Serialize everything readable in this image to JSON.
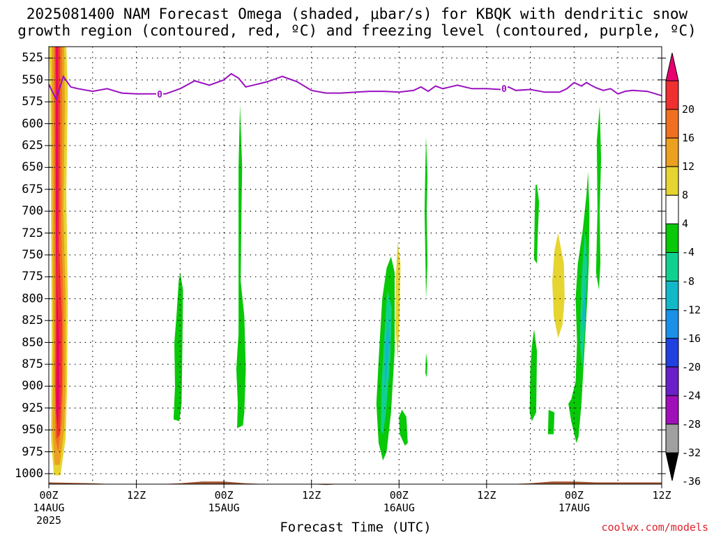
{
  "title": {
    "line1": "2025081400 NAM Forecast Omega (shaded, μbar/s) for KBQK with dendritic snow",
    "line2": "growth region (contoured, red, ºC) and freezing level (contoured, purple, ºC)"
  },
  "credit": "coolwx.com/models",
  "chart_data": {
    "type": "heatmap",
    "xlabel": "Forecast Time (UTC)",
    "ylabel": "",
    "x_ticks": [
      {
        "hour": 0,
        "label": "00Z",
        "date": "14AUG"
      },
      {
        "hour": 12,
        "label": "12Z",
        "date": ""
      },
      {
        "hour": 24,
        "label": "00Z",
        "date": "15AUG"
      },
      {
        "hour": 36,
        "label": "12Z",
        "date": ""
      },
      {
        "hour": 48,
        "label": "00Z",
        "date": "16AUG"
      },
      {
        "hour": 60,
        "label": "12Z",
        "date": ""
      },
      {
        "hour": 72,
        "label": "00Z",
        "date": "17AUG"
      },
      {
        "hour": 84,
        "label": "12Z",
        "date": ""
      }
    ],
    "year_label": "2025",
    "xlim": [
      0,
      84
    ],
    "y_ticks": [
      525,
      550,
      575,
      600,
      625,
      650,
      675,
      700,
      725,
      750,
      775,
      800,
      825,
      850,
      875,
      900,
      925,
      950,
      975,
      1000
    ],
    "ylim": [
      1012,
      512
    ],
    "grid": true,
    "colorbar": {
      "labels": [
        "20",
        "16",
        "12",
        "8",
        "4",
        "-4",
        "-8",
        "-12",
        "-16",
        "-20",
        "-24",
        "-28",
        "-32",
        "-36"
      ],
      "colors": [
        "#e8006e",
        "#ee3030",
        "#f07020",
        "#eba020",
        "#e6d530",
        "#ffffff",
        "#08c808",
        "#10d090",
        "#12b8c8",
        "#1a90e8",
        "#2040e0",
        "#6a20c8",
        "#a010b8",
        "#a0a0a0",
        "#000000"
      ]
    },
    "freezing_level": {
      "color": "#9a10c0",
      "label": "0",
      "label_hours": [
        15.2,
        62.4
      ],
      "hours": [
        0,
        1,
        2,
        3,
        4,
        6,
        8,
        10,
        12,
        14,
        16,
        18,
        20,
        22,
        24,
        25,
        26,
        27,
        28,
        30,
        32,
        33,
        34,
        36,
        38,
        40,
        42,
        44,
        46,
        48,
        50,
        51,
        52,
        53,
        54,
        55,
        56,
        58,
        60,
        62,
        63,
        64,
        66,
        68,
        70,
        71,
        72,
        73,
        73.7,
        74.3,
        75,
        76,
        77,
        78,
        79,
        80,
        82,
        84
      ],
      "values": [
        555,
        572,
        546,
        558,
        560,
        563,
        560,
        565,
        566,
        566,
        566,
        560,
        551,
        556,
        550,
        543,
        548,
        558,
        556,
        552,
        546,
        549,
        552,
        562,
        565,
        565,
        564,
        563,
        563,
        564,
        562,
        558,
        563,
        557,
        560,
        558,
        556,
        560,
        560,
        561,
        558,
        562,
        561,
        564,
        564,
        560,
        553,
        557,
        553,
        556,
        559,
        562,
        560,
        566,
        563,
        562,
        563,
        568
      ]
    },
    "omega_regions": [
      {
        "level": "4",
        "color": "#e6d530",
        "pts": [
          [
            0,
            512
          ],
          [
            2.4,
            512
          ],
          [
            2.6,
            560
          ],
          [
            2.4,
            680
          ],
          [
            2.6,
            800
          ],
          [
            2.5,
            900
          ],
          [
            2.3,
            960
          ],
          [
            1.6,
            1002
          ],
          [
            0.7,
            1002
          ],
          [
            0.3,
            960
          ],
          [
            0.4,
            850
          ],
          [
            0.3,
            700
          ],
          [
            0.2,
            560
          ]
        ]
      },
      {
        "level": "8",
        "color": "#eba020",
        "pts": [
          [
            0.4,
            512
          ],
          [
            2.1,
            512
          ],
          [
            2.2,
            580
          ],
          [
            2.0,
            700
          ],
          [
            2.3,
            800
          ],
          [
            2.3,
            900
          ],
          [
            2.1,
            950
          ],
          [
            1.5,
            990
          ],
          [
            0.8,
            990
          ],
          [
            0.5,
            950
          ],
          [
            0.6,
            850
          ],
          [
            0.5,
            700
          ],
          [
            0.4,
            580
          ]
        ]
      },
      {
        "level": "12",
        "color": "#f07020",
        "pts": [
          [
            0.7,
            512
          ],
          [
            1.8,
            512
          ],
          [
            1.8,
            600
          ],
          [
            1.7,
            720
          ],
          [
            2.0,
            800
          ],
          [
            2.0,
            880
          ],
          [
            1.8,
            940
          ],
          [
            1.3,
            975
          ],
          [
            0.9,
            960
          ],
          [
            0.8,
            880
          ],
          [
            0.8,
            760
          ],
          [
            0.7,
            600
          ]
        ]
      },
      {
        "level": "16",
        "color": "#ee3030",
        "pts": [
          [
            0.9,
            512
          ],
          [
            1.5,
            512
          ],
          [
            1.5,
            620
          ],
          [
            1.4,
            740
          ],
          [
            1.8,
            820
          ],
          [
            1.8,
            900
          ],
          [
            1.5,
            955
          ],
          [
            1.1,
            960
          ],
          [
            0.9,
            900
          ],
          [
            1.0,
            800
          ],
          [
            0.9,
            620
          ]
        ]
      },
      {
        "level": "20",
        "color": "#e8006e",
        "pts": [
          [
            1.0,
            512
          ],
          [
            1.2,
            512
          ],
          [
            1.2,
            700
          ],
          [
            1.1,
            780
          ],
          [
            1.4,
            850
          ],
          [
            1.4,
            920
          ],
          [
            1.2,
            945
          ],
          [
            1.0,
            930
          ],
          [
            1.1,
            850
          ],
          [
            1.0,
            750
          ]
        ]
      },
      {
        "level": "-4",
        "color": "#08c808",
        "pts": [
          [
            18.0,
            770
          ],
          [
            18.4,
            790
          ],
          [
            18.3,
            860
          ],
          [
            18.2,
            920
          ],
          [
            17.9,
            940
          ],
          [
            17.1,
            938
          ],
          [
            17.3,
            900
          ],
          [
            17.2,
            850
          ],
          [
            17.5,
            820
          ],
          [
            17.8,
            780
          ]
        ]
      },
      {
        "level": "-4",
        "color": "#08c808",
        "pts": [
          [
            26.2,
            578
          ],
          [
            26.5,
            650
          ],
          [
            26.4,
            700
          ],
          [
            26.3,
            780
          ],
          [
            26.8,
            820
          ],
          [
            27.0,
            880
          ],
          [
            26.8,
            930
          ],
          [
            26.6,
            945
          ],
          [
            25.8,
            948
          ],
          [
            25.9,
            920
          ],
          [
            25.7,
            880
          ],
          [
            26.0,
            840
          ],
          [
            26.0,
            760
          ],
          [
            26.0,
            650
          ]
        ]
      },
      {
        "level": "-4",
        "color": "#08c808",
        "pts": [
          [
            46.9,
            752
          ],
          [
            47.4,
            770
          ],
          [
            47.4,
            860
          ],
          [
            46.9,
            930
          ],
          [
            46.3,
            975
          ],
          [
            45.8,
            985
          ],
          [
            45.2,
            965
          ],
          [
            44.9,
            920
          ],
          [
            45.2,
            870
          ],
          [
            45.7,
            800
          ],
          [
            46.3,
            765
          ]
        ]
      },
      {
        "level": "-4",
        "color": "#08c808",
        "pts": [
          [
            48.4,
            927
          ],
          [
            49.0,
            935
          ],
          [
            49.2,
            965
          ],
          [
            48.8,
            968
          ],
          [
            48.1,
            955
          ],
          [
            48.0,
            935
          ]
        ]
      },
      {
        "level": "-4",
        "color": "#08c808",
        "pts": [
          [
            51.7,
            615
          ],
          [
            51.9,
            660
          ],
          [
            51.8,
            700
          ],
          [
            51.9,
            760
          ],
          [
            51.7,
            800
          ],
          [
            51.6,
            750
          ],
          [
            51.5,
            700
          ],
          [
            51.6,
            650
          ]
        ]
      },
      {
        "level": "-4",
        "color": "#08c808",
        "pts": [
          [
            51.7,
            862
          ],
          [
            51.9,
            875
          ],
          [
            51.8,
            890
          ],
          [
            51.6,
            885
          ]
        ]
      },
      {
        "level": "-4",
        "color": "#08c808",
        "pts": [
          [
            66.9,
            670
          ],
          [
            67.2,
            690
          ],
          [
            67.0,
            730
          ],
          [
            66.9,
            760
          ],
          [
            66.5,
            755
          ],
          [
            66.6,
            700
          ],
          [
            66.7,
            670
          ]
        ]
      },
      {
        "level": "-4",
        "color": "#08c808",
        "pts": [
          [
            66.5,
            835
          ],
          [
            66.9,
            860
          ],
          [
            66.8,
            930
          ],
          [
            66.2,
            940
          ],
          [
            65.9,
            930
          ],
          [
            66.0,
            880
          ],
          [
            66.2,
            855
          ]
        ]
      },
      {
        "level": "-4",
        "color": "#08c808",
        "pts": [
          [
            68.5,
            927
          ],
          [
            69.3,
            930
          ],
          [
            69.2,
            955
          ],
          [
            68.4,
            955
          ]
        ]
      },
      {
        "level": "-4",
        "color": "#08c808",
        "pts": [
          [
            73.9,
            655
          ],
          [
            74.1,
            700
          ],
          [
            74.0,
            760
          ],
          [
            73.8,
            800
          ],
          [
            73.4,
            860
          ],
          [
            73.0,
            920
          ],
          [
            72.6,
            958
          ],
          [
            72.3,
            965
          ],
          [
            71.6,
            940
          ],
          [
            71.2,
            920
          ],
          [
            70.8,
            925
          ],
          [
            71.6,
            915
          ],
          [
            72.2,
            895
          ],
          [
            72.4,
            850
          ],
          [
            72.2,
            800
          ],
          [
            72.5,
            760
          ],
          [
            73.2,
            720
          ],
          [
            73.7,
            680
          ]
        ]
      },
      {
        "level": "-4",
        "color": "#08c808",
        "pts": [
          [
            75.5,
            580
          ],
          [
            75.7,
            640
          ],
          [
            75.5,
            700
          ],
          [
            75.6,
            760
          ],
          [
            75.4,
            790
          ],
          [
            75.0,
            770
          ],
          [
            75.2,
            700
          ],
          [
            75.1,
            620
          ]
        ]
      },
      {
        "level": "-8",
        "color": "#10d090",
        "pts": [
          [
            46.4,
            790
          ],
          [
            47.0,
            810
          ],
          [
            46.8,
            870
          ],
          [
            46.2,
            930
          ],
          [
            45.8,
            955
          ],
          [
            45.5,
            950
          ],
          [
            45.6,
            900
          ],
          [
            46.0,
            840
          ]
        ]
      },
      {
        "level": "-8",
        "color": "#10d090",
        "pts": [
          [
            73.5,
            720
          ],
          [
            73.8,
            760
          ],
          [
            73.5,
            830
          ],
          [
            73.1,
            880
          ],
          [
            72.8,
            850
          ],
          [
            73.0,
            780
          ]
        ]
      },
      {
        "level": "-12",
        "color": "#12b8c8",
        "pts": [
          [
            46.5,
            820
          ],
          [
            46.7,
            850
          ],
          [
            46.3,
            890
          ],
          [
            46.0,
            900
          ],
          [
            46.1,
            860
          ]
        ]
      },
      {
        "level": "-12",
        "color": "#12b8c8",
        "pts": [
          [
            73.5,
            780
          ],
          [
            73.6,
            810
          ],
          [
            73.3,
            840
          ],
          [
            73.1,
            820
          ]
        ]
      },
      {
        "level": "4",
        "color": "#e6d530",
        "pts": [
          [
            47.8,
            735
          ],
          [
            48.2,
            760
          ],
          [
            48.1,
            820
          ],
          [
            47.8,
            870
          ],
          [
            47.5,
            830
          ],
          [
            47.6,
            770
          ]
        ]
      },
      {
        "level": "4",
        "color": "#e6d530",
        "pts": [
          [
            69.8,
            725
          ],
          [
            70.6,
            760
          ],
          [
            70.7,
            800
          ],
          [
            70.4,
            830
          ],
          [
            69.8,
            845
          ],
          [
            69.2,
            820
          ],
          [
            69.0,
            780
          ],
          [
            69.3,
            745
          ]
        ]
      }
    ],
    "terrain": {
      "color": "#a0522d",
      "hours": [
        0,
        6,
        9,
        12,
        15,
        18,
        21,
        24,
        27,
        30,
        33,
        36,
        38,
        40,
        42,
        45,
        48,
        51,
        54,
        57,
        60,
        63,
        66,
        69,
        72,
        75,
        78,
        81,
        84
      ],
      "top_values": [
        1010,
        1011,
        1012,
        1012,
        1012,
        1011,
        1009,
        1009,
        1011,
        1012,
        1012,
        1012,
        1013,
        1012,
        1012,
        1012,
        1012,
        1012,
        1012,
        1012,
        1012,
        1012,
        1011,
        1009,
        1009,
        1010,
        1010,
        1010,
        1010
      ]
    }
  }
}
